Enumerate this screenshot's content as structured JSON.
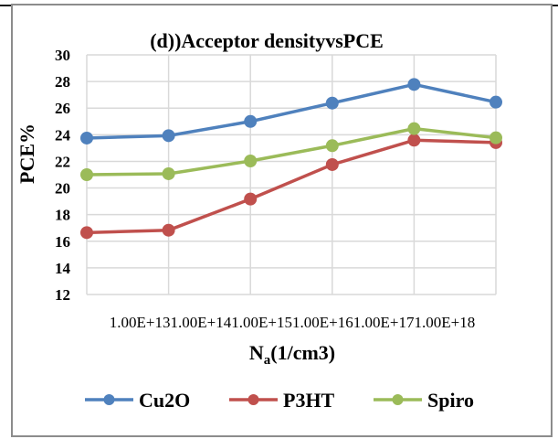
{
  "chart_data": {
    "type": "line",
    "title": "(d))Acceptor densityvsPCE",
    "xlabel_main": "N",
    "xlabel_sub": "a",
    "xlabel_rest": "(1/cm3)",
    "ylabel": "PCE%",
    "categories": [
      "1.00E+13",
      "1.00E+14",
      "1.00E+15",
      "1.00E+16",
      "1.00E+17",
      "1.00E+18"
    ],
    "ylim": [
      12,
      30
    ],
    "yticks": [
      12,
      14,
      16,
      18,
      20,
      22,
      24,
      26,
      28,
      30
    ],
    "grid": true,
    "legend_position": "bottom",
    "series": [
      {
        "name": "Cu2O",
        "color": "#4F81BD",
        "values": [
          23.75,
          23.93,
          25.0,
          26.38,
          27.78,
          26.45
        ]
      },
      {
        "name": "P3HT",
        "color": "#C0504D",
        "values": [
          16.65,
          16.83,
          19.17,
          21.76,
          23.59,
          23.41
        ]
      },
      {
        "name": "Spiro",
        "color": "#9BBB59",
        "values": [
          21.0,
          21.07,
          22.03,
          23.18,
          24.46,
          23.77
        ]
      }
    ]
  }
}
